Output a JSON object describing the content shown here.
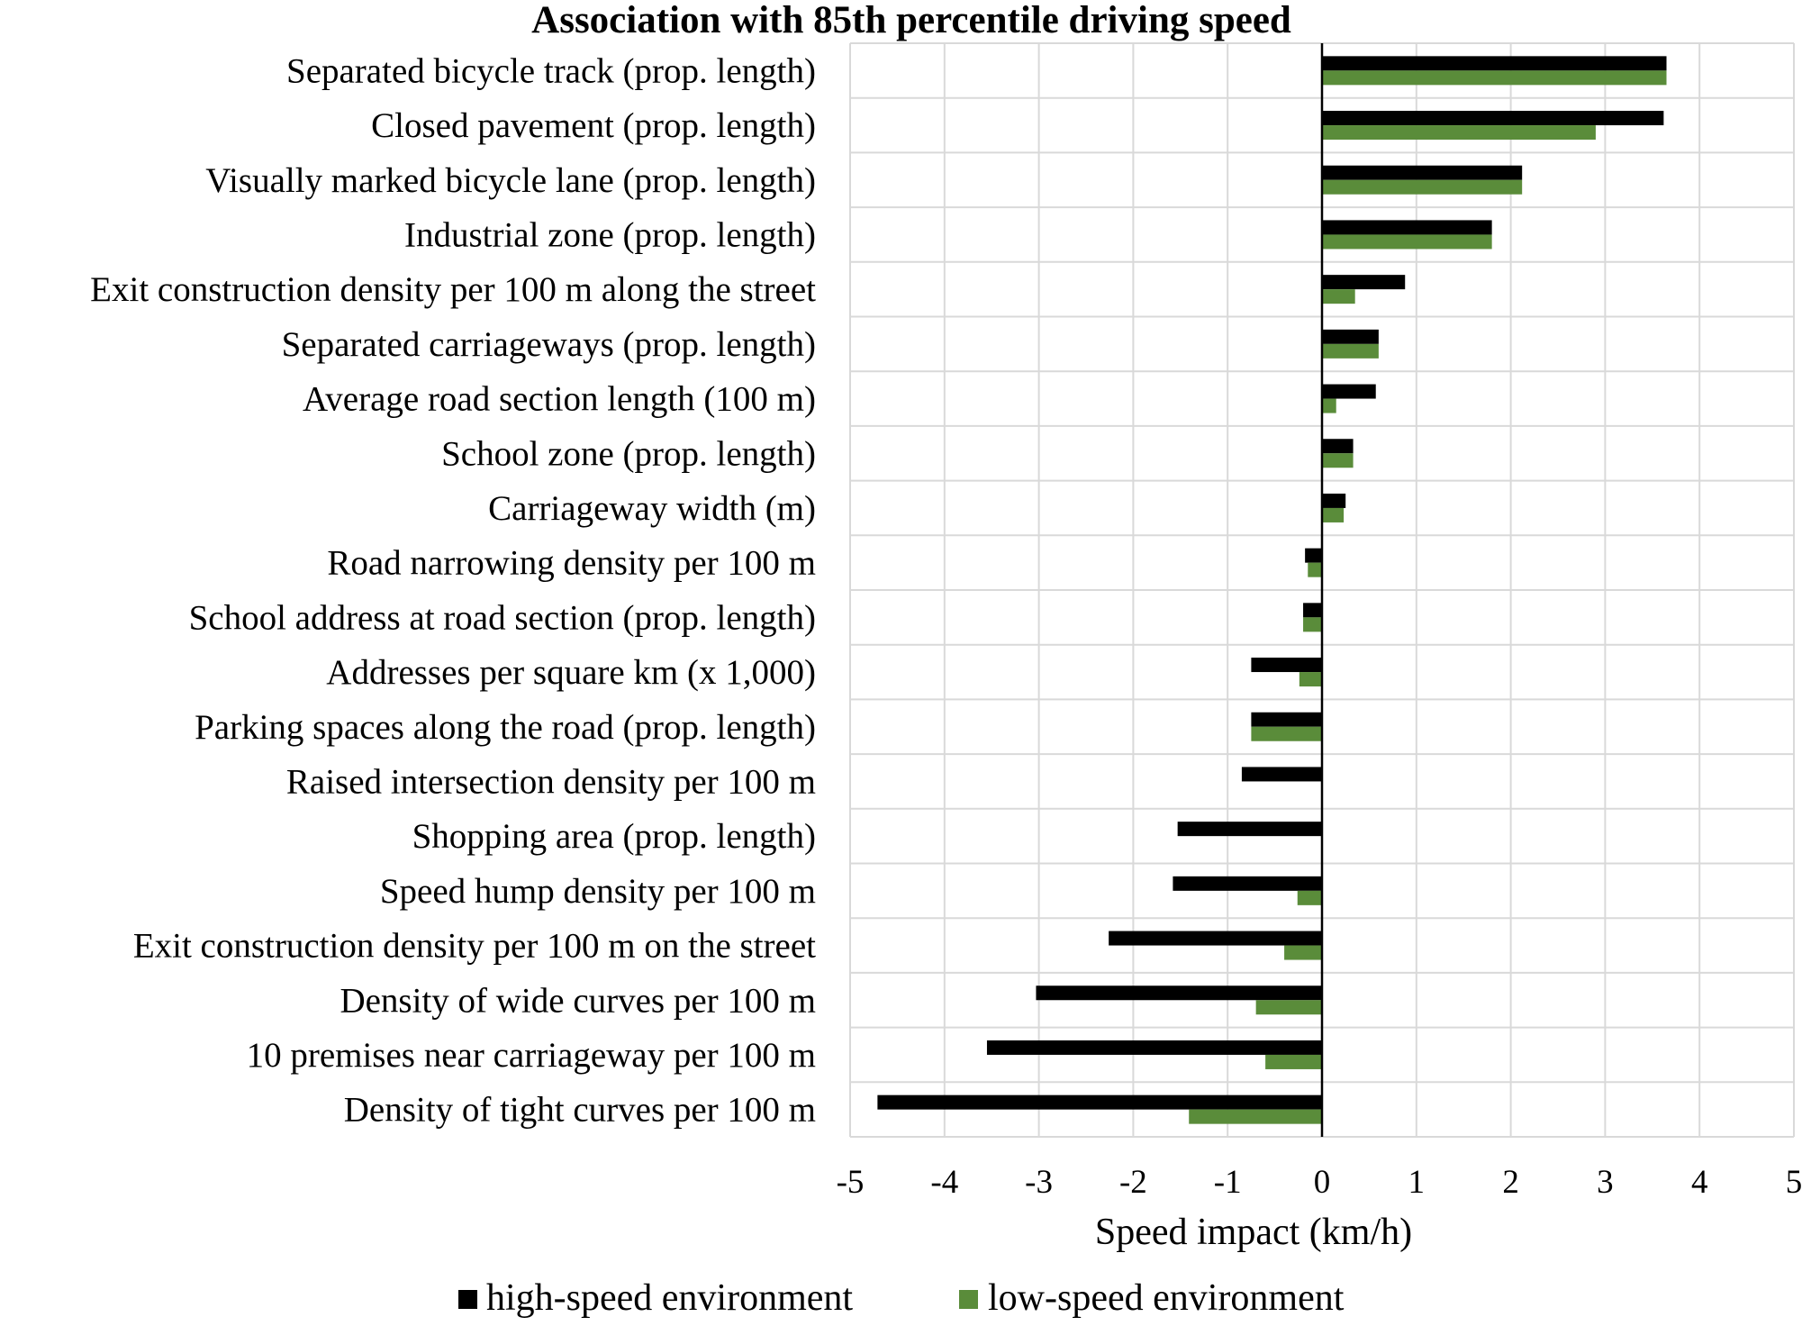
{
  "chart_data": {
    "type": "bar",
    "orientation": "horizontal",
    "title": "Association with 85th percentile driving speed",
    "xlabel": "Speed impact (km/h)",
    "ylabel": "",
    "xlim": [
      -5,
      5
    ],
    "x_ticks": [
      "-5",
      "-4",
      "-3",
      "-2",
      "-1",
      "0",
      "1",
      "2",
      "3",
      "4",
      "5"
    ],
    "grid": true,
    "legend_position": "bottom",
    "categories": [
      "Separated bicycle track (prop. length)",
      "Closed pavement (prop. length)",
      "Visually marked bicycle lane (prop. length)",
      "Industrial zone (prop. length)",
      "Exit construction density per 100 m along the street",
      "Separated carriageways (prop. length)",
      "Average road section length (100 m)",
      "School zone (prop. length)",
      "Carriageway width (m)",
      "Road narrowing density per 100 m",
      "School address at road section (prop. length)",
      "Addresses per square km (x 1,000)",
      "Parking spaces along the road (prop. length)",
      "Raised intersection density per 100 m",
      "Shopping area (prop. length)",
      "Speed hump density per 100 m",
      "Exit construction density per 100 m on the street",
      "Density of wide curves per 100 m",
      "10 premises near carriageway per 100 m",
      "Density of tight curves per 100 m"
    ],
    "series": [
      {
        "name": "high-speed environment",
        "color": "#000000",
        "values": [
          3.65,
          3.62,
          2.12,
          1.8,
          0.88,
          0.6,
          0.57,
          0.33,
          0.25,
          -0.18,
          -0.2,
          -0.75,
          -0.75,
          -0.85,
          -1.53,
          -1.58,
          -2.26,
          -3.03,
          -3.55,
          -4.71
        ]
      },
      {
        "name": "low-speed environment",
        "color": "#5a8c3a",
        "values": [
          3.65,
          2.9,
          2.12,
          1.8,
          0.35,
          0.6,
          0.15,
          0.33,
          0.23,
          -0.15,
          -0.2,
          -0.24,
          -0.75,
          0.0,
          0.0,
          -0.26,
          -0.4,
          -0.7,
          -0.6,
          -1.41
        ]
      }
    ]
  }
}
